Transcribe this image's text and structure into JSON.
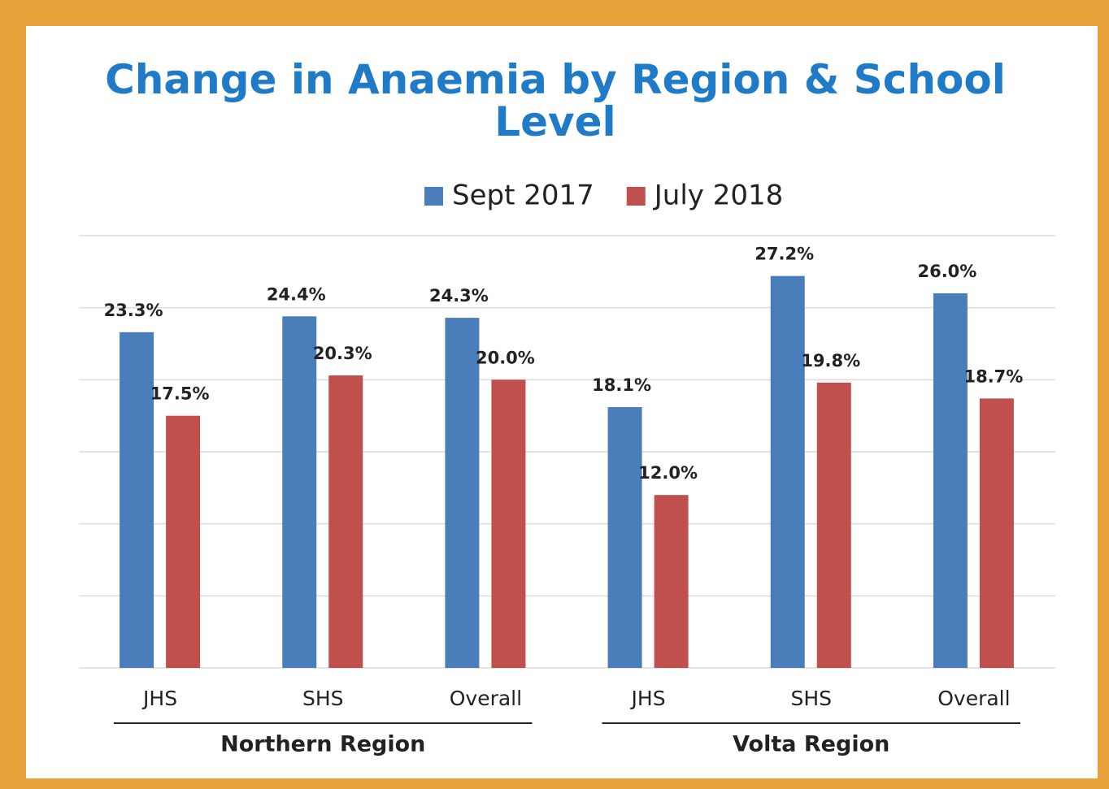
{
  "chart_data": {
    "type": "bar",
    "title": "Change in Anaemia by Region & School Level",
    "categories": [
      "JHS",
      "SHS",
      "Overall",
      "JHS",
      "SHS",
      "Overall"
    ],
    "group_labels": [
      "Northern Region",
      "Volta Region"
    ],
    "series": [
      {
        "name": "Sept 2017",
        "color": "#4a7ebb",
        "values": [
          23.3,
          24.4,
          24.3,
          18.1,
          27.2,
          26.0
        ],
        "value_labels": [
          "23.3%",
          "24.4%",
          "24.3%",
          "18.1%",
          "27.2%",
          "26.0%"
        ]
      },
      {
        "name": "July 2018",
        "color": "#c0504d",
        "values": [
          17.5,
          20.3,
          20.0,
          12.0,
          19.8,
          18.7
        ],
        "value_labels": [
          "17.5%",
          "20.3%",
          "20.0%",
          "12.0%",
          "19.8%",
          "18.7%"
        ]
      }
    ],
    "ylim": [
      0,
      30
    ],
    "yticks": [
      0,
      5,
      10,
      15,
      20,
      25,
      30
    ],
    "grid": true
  }
}
